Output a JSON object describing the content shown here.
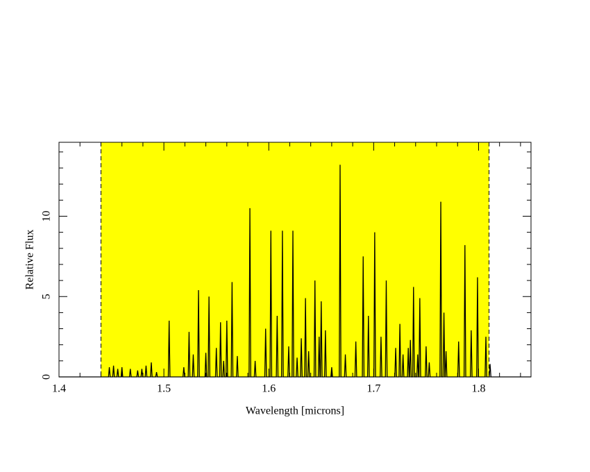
{
  "chart_data": {
    "type": "line",
    "xlabel": "Wavelength [microns]",
    "ylabel": "Relative Flux",
    "xlim": [
      1.4,
      1.85
    ],
    "ylim": [
      0,
      14.6
    ],
    "xticks": [
      1.4,
      1.5,
      1.6,
      1.7,
      1.8
    ],
    "xminorticks": [
      1.42,
      1.44,
      1.46,
      1.48,
      1.52,
      1.54,
      1.56,
      1.58,
      1.62,
      1.64,
      1.66,
      1.68,
      1.72,
      1.74,
      1.76,
      1.78,
      1.82,
      1.84
    ],
    "yticks": [
      0,
      5,
      10
    ],
    "yminorticks": [
      1,
      2,
      3,
      4,
      6,
      7,
      8,
      9,
      11,
      12,
      13,
      14
    ],
    "shaded_xrange": [
      1.44,
      1.81
    ],
    "shade_color": "#ffff00",
    "x": [
      1.4,
      1.4472,
      1.448,
      1.4488,
      1.4512,
      1.452,
      1.4528,
      1.4552,
      1.456,
      1.4568,
      1.4592,
      1.46,
      1.4608,
      1.4672,
      1.468,
      1.4688,
      1.4742,
      1.475,
      1.4758,
      1.4782,
      1.479,
      1.4798,
      1.4822,
      1.483,
      1.4838,
      1.4872,
      1.488,
      1.4888,
      1.4922,
      1.493,
      1.4938,
      1.5042,
      1.505,
      1.5058,
      1.5182,
      1.519,
      1.5198,
      1.5232,
      1.524,
      1.5248,
      1.5272,
      1.528,
      1.5288,
      1.5322,
      1.533,
      1.5338,
      1.5392,
      1.54,
      1.5408,
      1.5422,
      1.543,
      1.5438,
      1.5492,
      1.55,
      1.5508,
      1.5532,
      1.554,
      1.5548,
      1.5562,
      1.557,
      1.5578,
      1.5592,
      1.56,
      1.5608,
      1.5642,
      1.565,
      1.5658,
      1.5692,
      1.57,
      1.5708,
      1.5812,
      1.582,
      1.5828,
      1.5862,
      1.587,
      1.5878,
      1.5962,
      1.597,
      1.5978,
      1.6012,
      1.602,
      1.6028,
      1.6072,
      1.608,
      1.6088,
      1.6122,
      1.613,
      1.6138,
      1.6182,
      1.619,
      1.6198,
      1.6222,
      1.623,
      1.6238,
      1.6262,
      1.627,
      1.6278,
      1.6302,
      1.631,
      1.6318,
      1.6342,
      1.635,
      1.6358,
      1.6372,
      1.638,
      1.6388,
      1.6432,
      1.644,
      1.6448,
      1.6472,
      1.648,
      1.6488,
      1.6492,
      1.65,
      1.6508,
      1.6532,
      1.654,
      1.6548,
      1.6592,
      1.66,
      1.6608,
      1.6672,
      1.668,
      1.6688,
      1.6722,
      1.673,
      1.6738,
      1.6822,
      1.683,
      1.6838,
      1.6892,
      1.69,
      1.6908,
      1.6942,
      1.695,
      1.6958,
      1.7002,
      1.701,
      1.7018,
      1.7062,
      1.707,
      1.7078,
      1.7112,
      1.712,
      1.7128,
      1.7202,
      1.721,
      1.7218,
      1.7242,
      1.725,
      1.7258,
      1.7272,
      1.728,
      1.7288,
      1.7322,
      1.733,
      1.7338,
      1.7342,
      1.735,
      1.7358,
      1.7372,
      1.738,
      1.7388,
      1.7412,
      1.742,
      1.7428,
      1.7432,
      1.744,
      1.7448,
      1.7492,
      1.75,
      1.7508,
      1.7522,
      1.753,
      1.7538,
      1.7632,
      1.764,
      1.7648,
      1.7662,
      1.767,
      1.7678,
      1.7682,
      1.769,
      1.7698,
      1.7802,
      1.781,
      1.7818,
      1.7862,
      1.787,
      1.7878,
      1.7922,
      1.793,
      1.7938,
      1.7982,
      1.799,
      1.7998,
      1.8062,
      1.807,
      1.8078,
      1.8102,
      1.811,
      1.8118,
      1.85
    ],
    "series": [
      {
        "color": "#000000",
        "values": [
          0,
          0,
          0.6,
          0,
          0,
          0.7,
          0,
          0,
          0.5,
          0,
          0,
          0.6,
          0,
          0,
          0.5,
          0,
          0,
          0.4,
          0,
          0,
          0.5,
          0,
          0,
          0.7,
          0,
          0,
          0.9,
          0,
          0,
          0.3,
          0,
          0,
          3.5,
          0,
          0,
          0.6,
          0,
          0,
          2.8,
          0,
          0,
          1.4,
          0,
          0,
          5.4,
          0,
          0,
          1.5,
          0,
          0,
          5.0,
          0,
          0,
          1.8,
          0,
          0,
          3.4,
          0,
          0,
          1.0,
          0,
          0,
          3.5,
          0,
          0,
          5.9,
          0,
          0,
          1.3,
          0,
          0,
          10.5,
          0,
          0,
          1.0,
          0,
          0,
          3.0,
          0,
          0,
          9.1,
          0,
          0,
          3.8,
          0,
          0,
          9.1,
          0,
          0,
          1.9,
          0,
          0,
          9.1,
          0,
          0,
          1.2,
          0,
          0,
          2.4,
          0,
          0,
          4.9,
          0,
          0,
          1.6,
          0,
          0,
          6.0,
          0,
          0,
          2.5,
          0,
          0,
          4.7,
          0,
          0,
          2.9,
          0,
          0,
          0.6,
          0,
          0,
          13.2,
          0,
          0,
          1.4,
          0,
          0,
          2.2,
          0,
          0,
          7.5,
          0,
          0,
          3.8,
          0,
          0,
          9.0,
          0,
          0,
          2.5,
          0,
          0,
          6.0,
          0,
          0,
          1.8,
          0,
          0,
          3.3,
          0,
          0,
          1.4,
          0,
          0,
          1.8,
          0,
          0,
          2.3,
          0,
          0,
          5.6,
          0,
          0,
          1.4,
          0,
          0,
          4.9,
          0,
          0,
          1.9,
          0,
          0,
          0.9,
          0,
          0,
          10.9,
          0,
          0,
          4.0,
          0,
          0,
          1.6,
          0,
          0,
          2.2,
          0,
          0,
          8.2,
          0,
          0,
          2.9,
          0,
          0,
          6.2,
          0,
          0,
          2.5,
          0,
          0,
          0.8,
          0,
          0
        ]
      }
    ]
  }
}
